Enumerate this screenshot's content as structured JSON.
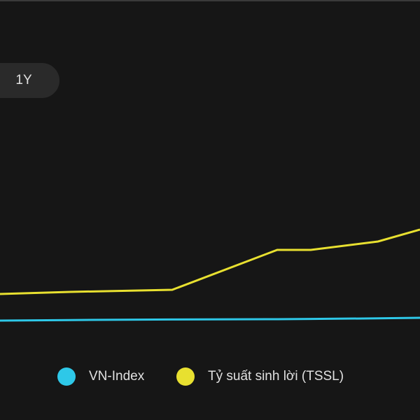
{
  "button": {
    "label": "1Y"
  },
  "chart_data": {
    "type": "line",
    "x": [
      0,
      16.7,
      41,
      66,
      74,
      90,
      100
    ],
    "xlim": [
      0,
      100
    ],
    "ylim": [
      0,
      100
    ],
    "series": [
      {
        "name": "VN-Index",
        "color": "#2ec8e8",
        "values": [
          10.5,
          10.7,
          10.9,
          11.0,
          11.1,
          11.3,
          11.5
        ]
      },
      {
        "name": "Tỷ suất sinh lời (TSSL)",
        "color": "#e8e030",
        "values": [
          20,
          20.75,
          21.5,
          35.75,
          35.75,
          38.75,
          43
        ]
      }
    ]
  }
}
